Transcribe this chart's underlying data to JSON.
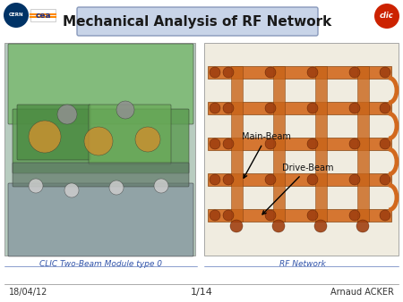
{
  "title": "Mechanical Analysis of RF Network",
  "title_box_color": "#c8d4e8",
  "title_box_edge": "#8899bb",
  "background_color": "#ffffff",
  "footer_left": "18/04/12",
  "footer_center": "1/14",
  "footer_right": "Arnaud ACKER",
  "caption_left": "CLIC Two-Beam Module type 0",
  "caption_right": "RF Network",
  "label_drive_beam": "Drive-Beam",
  "label_main_beam": "Main-Beam",
  "arrow_color": "#000000",
  "label_fontsize": 7,
  "footer_fontsize": 7,
  "caption_fontsize": 6.5,
  "title_fontsize": 11
}
